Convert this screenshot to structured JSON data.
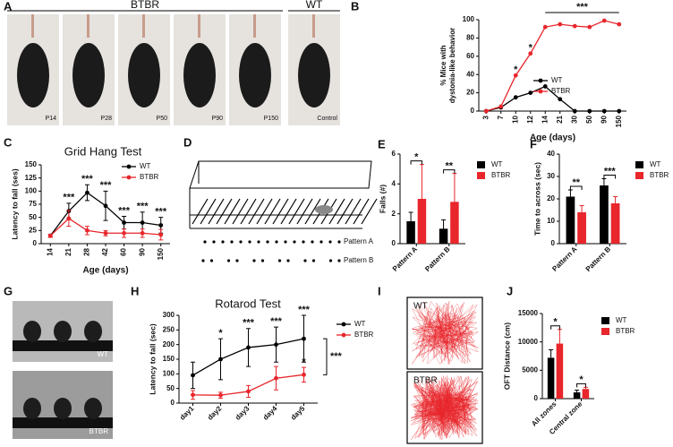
{
  "figure": {
    "panel_letters": [
      "A",
      "B",
      "C",
      "D",
      "E",
      "F",
      "G",
      "H",
      "I",
      "J"
    ],
    "A": {
      "group_labels": [
        "BTBR",
        "WT"
      ],
      "photo_labels": [
        "P14",
        "P28",
        "P50",
        "P90",
        "P150",
        "Control"
      ]
    },
    "D": {
      "patterns": [
        "Pattern A",
        "Pattern B"
      ]
    },
    "G": {
      "labels": [
        "WT",
        "BTBR"
      ]
    },
    "I": {
      "labels": [
        "WT",
        "BTBR"
      ]
    }
  },
  "chart_data": [
    {
      "type": "line",
      "categories": [
        "3",
        "7",
        "10",
        "12",
        "14",
        "21",
        "30",
        "50",
        "90",
        "150"
      ],
      "xlabel": "Age (days)",
      "ylabel": [
        "% Mice with",
        "dystonia-like behavior"
      ],
      "ylim": [
        0,
        100
      ],
      "yticks": [
        0,
        20,
        40,
        60,
        80,
        100
      ],
      "legend": "lower right",
      "series": [
        {
          "name": "WT",
          "color": "#000000",
          "values": [
            0,
            4,
            15,
            20,
            27,
            13,
            0,
            0,
            0,
            0
          ]
        },
        {
          "name": "BTBR",
          "color": "#e8262b",
          "values": [
            0,
            5,
            39,
            63,
            92,
            95,
            93,
            92,
            99,
            95
          ]
        }
      ],
      "annotations": [
        {
          "label": "*",
          "at": "10",
          "series": "BTBR"
        },
        {
          "label": "*",
          "at": "12",
          "series": "BTBR"
        }
      ],
      "span_annotation": {
        "label": "***",
        "from": "14",
        "to": "150"
      }
    },
    {
      "type": "line",
      "title": "Grid Hang Test",
      "categories": [
        "14",
        "21",
        "28",
        "42",
        "60",
        "90",
        "150"
      ],
      "xlabel": "Age (days)",
      "ylabel": "Latency to fall (ses)",
      "ylim": [
        0,
        150
      ],
      "yticks": [
        0,
        25,
        50,
        75,
        100,
        125,
        150
      ],
      "legend": "upper right",
      "series": [
        {
          "name": "WT",
          "color": "#000000",
          "values": [
            15,
            62,
            97,
            72,
            40,
            40,
            35
          ],
          "errors": [
            3,
            15,
            15,
            28,
            12,
            20,
            15
          ]
        },
        {
          "name": "BTBR",
          "color": "#e8262b",
          "values": [
            15,
            48,
            25,
            20,
            20,
            20,
            17
          ],
          "errors": [
            3,
            15,
            8,
            5,
            8,
            8,
            10
          ]
        }
      ],
      "annotations": [
        {
          "label": "***",
          "at": "21"
        },
        {
          "label": "***",
          "at": "28"
        },
        {
          "label": "***",
          "at": "42"
        },
        {
          "label": "***",
          "at": "60"
        },
        {
          "label": "***",
          "at": "90"
        },
        {
          "label": "***",
          "at": "150"
        }
      ]
    },
    {
      "type": "bar",
      "categories": [
        "Pattern A",
        "Pattern B"
      ],
      "ylabel": "Falls (#)",
      "ylim": [
        0,
        6
      ],
      "yticks": [
        0,
        2,
        4,
        6
      ],
      "legend": "right",
      "series": [
        {
          "name": "WT",
          "color": "#000000",
          "values": [
            1.5,
            1.0
          ],
          "errors": [
            0.6,
            0.6
          ]
        },
        {
          "name": "BTBR",
          "color": "#e8262b",
          "values": [
            3.0,
            2.8
          ],
          "errors": [
            2.3,
            1.9
          ]
        }
      ],
      "significance": [
        "*",
        "**"
      ]
    },
    {
      "type": "bar",
      "categories": [
        "Pattern A",
        "Pattern B"
      ],
      "ylabel": "Time to across (sec)",
      "ylim": [
        0,
        40
      ],
      "yticks": [
        0,
        10,
        20,
        30,
        40
      ],
      "legend": "right",
      "series": [
        {
          "name": "WT",
          "color": "#000000",
          "values": [
            21,
            26
          ],
          "errors": [
            3,
            3
          ]
        },
        {
          "name": "BTBR",
          "color": "#e8262b",
          "values": [
            14,
            18
          ],
          "errors": [
            3,
            3
          ]
        }
      ],
      "significance": [
        "**",
        "***"
      ]
    },
    {
      "type": "line",
      "title": "Rotarod Test",
      "categories": [
        "day1",
        "day2",
        "day3",
        "day4",
        "day5"
      ],
      "ylabel": "Latency to fall (sec)",
      "ylim": [
        0,
        300
      ],
      "yticks": [
        0,
        50,
        100,
        150,
        200,
        250,
        300
      ],
      "legend": "right",
      "series": [
        {
          "name": "WT",
          "color": "#000000",
          "values": [
            95,
            150,
            190,
            200,
            220
          ],
          "errors": [
            45,
            70,
            65,
            60,
            80
          ]
        },
        {
          "name": "BTBR",
          "color": "#e8262b",
          "values": [
            28,
            27,
            40,
            85,
            97
          ],
          "errors": [
            15,
            10,
            20,
            40,
            25
          ]
        }
      ],
      "annotations": [
        {
          "label": "*",
          "at": "day2",
          "series": "WT"
        },
        {
          "label": "***",
          "at": "day3",
          "series": "WT"
        },
        {
          "label": "***",
          "at": "day4",
          "series": "WT"
        },
        {
          "label": "***",
          "at": "day5",
          "series": "WT"
        },
        {
          "label": "*",
          "at": "day5",
          "series": "BTBR"
        }
      ],
      "comparison": "***"
    },
    {
      "type": "bar",
      "categories": [
        "All zones",
        "Central zone"
      ],
      "ylabel": "OFT Distance (cm)",
      "ylim": [
        0,
        15000
      ],
      "yticks": [
        0,
        5000,
        10000,
        15000
      ],
      "legend": "right",
      "series": [
        {
          "name": "WT",
          "color": "#000000",
          "values": [
            7200,
            1100
          ],
          "errors": [
            1400,
            400
          ]
        },
        {
          "name": "BTBR",
          "color": "#e8262b",
          "values": [
            9700,
            1700
          ],
          "errors": [
            2500,
            300
          ]
        }
      ],
      "significance": [
        "*",
        "*"
      ]
    }
  ]
}
